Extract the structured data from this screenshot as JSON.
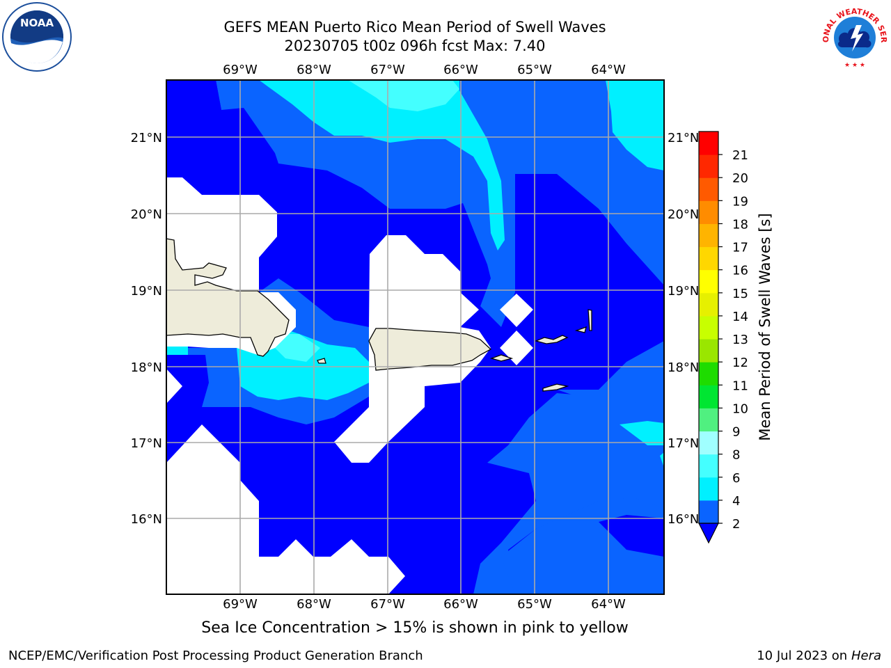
{
  "title_line1": "GEFS MEAN Puerto Rico Mean Period of Swell Waves",
  "title_line2": "20230705 t00z 096h fcst   Max: 7.40",
  "lon_labels": [
    "69°W",
    "68°W",
    "67°W",
    "66°W",
    "65°W",
    "64°W"
  ],
  "lat_labels": [
    "21°N",
    "20°N",
    "19°N",
    "18°N",
    "17°N",
    "16°N"
  ],
  "colorbar": {
    "label": "Mean Period of Swell Waves [s]",
    "ticks": [
      "2",
      "4",
      "6",
      "8",
      "9",
      "10",
      "11",
      "12",
      "13",
      "14",
      "15",
      "16",
      "17",
      "18",
      "19",
      "20",
      "21"
    ],
    "colors": [
      "#0a64ff",
      "#00f0ff",
      "#44ffff",
      "#a0ffff",
      "#50f080",
      "#00e632",
      "#1edc00",
      "#9ae600",
      "#c8ff00",
      "#e6f000",
      "#ffff00",
      "#ffd700",
      "#ffb400",
      "#ff8c00",
      "#ff5a00",
      "#ff2800",
      "#ff0000"
    ],
    "under_color": "#0000ff"
  },
  "map_colors": {
    "band_lt2": "#0000ff",
    "band_2_4": "#0a64ff",
    "band_4_6": "#00f0ff",
    "band_6_8": "#44ffff",
    "land": "#eeecda",
    "nodata": "#ffffff"
  },
  "icons": {
    "noaa": "noaa-logo",
    "nws": "nws-logo"
  },
  "logo_text": {
    "noaa": "NOAA",
    "nws": "NATIONAL WEATHER SERVICE"
  },
  "footer": {
    "note": "Sea Ice Concentration > 15% is shown in pink to yellow",
    "branch": "NCEP/EMC/Verification Post Processing Product Generation Branch",
    "date": "10 Jul 2023 on ",
    "machine": "Hera"
  }
}
